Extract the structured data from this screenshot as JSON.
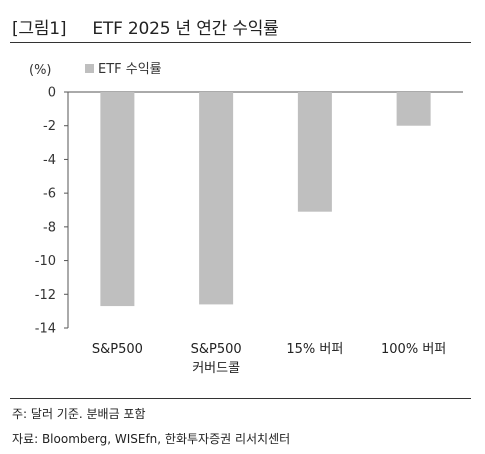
{
  "header": {
    "tag": "[그림1]",
    "title": "ETF 2025 년 연간 수익률"
  },
  "chart_data": {
    "type": "bar",
    "unit_label": "(%)",
    "categories": [
      [
        "S&P500"
      ],
      [
        "S&P500",
        "커버드콜"
      ],
      [
        "15% 버퍼"
      ],
      [
        "100% 버퍼"
      ]
    ],
    "series": [
      {
        "name": "ETF 수익률",
        "values": [
          -12.7,
          -12.6,
          -7.1,
          -2.0
        ]
      }
    ],
    "ylim": [
      -14,
      0
    ],
    "yticks": [
      0,
      -2,
      -4,
      -6,
      -8,
      -10,
      -12,
      -14
    ],
    "grid": false,
    "legend": "top-left",
    "colors": {
      "bar": "#bfbfbf"
    }
  },
  "notes": {
    "note": "주: 달러 기준. 분배금 포함",
    "source": "자료: Bloomberg, WISEfn, 한화투자증권 리서치센터"
  }
}
